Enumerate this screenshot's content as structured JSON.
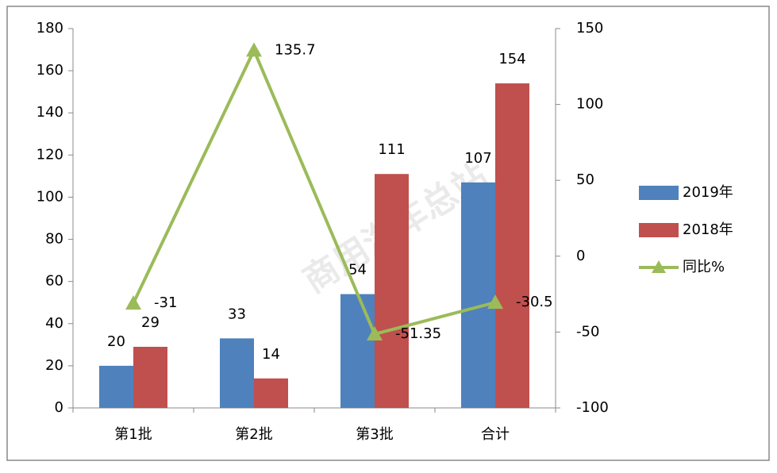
{
  "chart_data": {
    "type": "bar",
    "categories": [
      "第1批",
      "第2批",
      "第3批",
      "合计"
    ],
    "series": [
      {
        "name": "2019年",
        "color": "#4f81bd",
        "values": [
          20,
          33,
          54,
          107
        ]
      },
      {
        "name": "2018年",
        "color": "#c0504d",
        "values": [
          29,
          14,
          111,
          154
        ]
      },
      {
        "name": "同比%",
        "color": "#9bbb59",
        "type": "line",
        "axis": "y2",
        "values": [
          -31,
          135.7,
          -51.35,
          -30.5
        ]
      }
    ],
    "ylim": [
      0,
      180
    ],
    "yticks": [
      0,
      20,
      40,
      60,
      80,
      100,
      120,
      140,
      160,
      180
    ],
    "y2lim": [
      -100,
      150
    ],
    "y2ticks": [
      -100,
      -50,
      0,
      50,
      100,
      150
    ],
    "legend": "right",
    "watermark": "商用汽车总站"
  }
}
